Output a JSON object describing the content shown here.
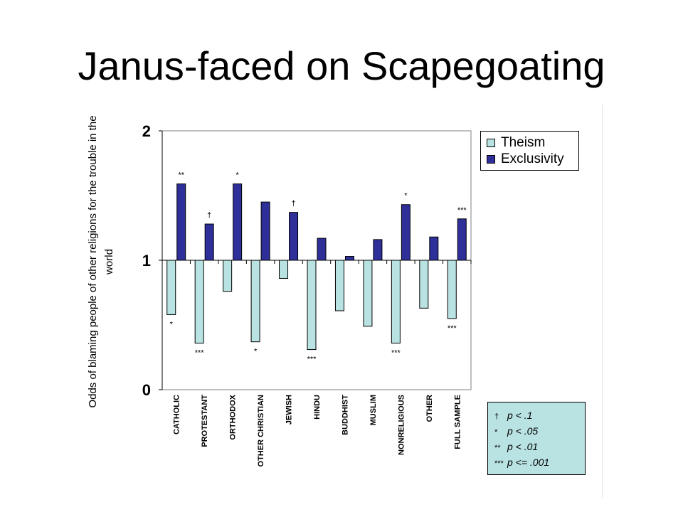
{
  "title": "Janus-faced on Scapegoating",
  "chart_data": {
    "type": "bar",
    "categories": [
      "CATHOLIC",
      "PROTESTANT",
      "ORTHODOX",
      "OTHER CHRISTIAN",
      "JEWISH",
      "HINDU",
      "BUDDHIST",
      "MUSLIM",
      "NONRELIGIOUS",
      "OTHER",
      "FULL SAMPLE"
    ],
    "series": [
      {
        "name": "Theism",
        "color": "#b9e2e2",
        "values": [
          0.58,
          0.36,
          0.76,
          0.37,
          0.86,
          0.31,
          0.61,
          0.49,
          0.36,
          0.63,
          0.55
        ],
        "significance": [
          "*",
          "***",
          "",
          "*",
          "",
          "***",
          "",
          "",
          "***",
          "",
          "***"
        ]
      },
      {
        "name": "Exclusivity",
        "color": "#2f2f9a",
        "values": [
          1.59,
          1.28,
          1.59,
          1.45,
          1.37,
          1.17,
          1.03,
          1.16,
          1.43,
          1.18,
          1.32
        ],
        "significance": [
          "**",
          "†",
          "*",
          "",
          "†",
          "",
          "",
          "",
          "*",
          "",
          "***"
        ]
      }
    ],
    "title": "",
    "xlabel": "",
    "ylabel": "Odds of blaming people of other religions for the trouble in the world",
    "ylim": [
      0,
      2
    ],
    "yticks": [
      "0",
      "1",
      "2"
    ],
    "baseline": 1,
    "grid": false,
    "legend": "top-right"
  },
  "significance_key": [
    {
      "symbol": "†",
      "text": "p < .1"
    },
    {
      "symbol": "*",
      "text": "p < .05"
    },
    {
      "symbol": "**",
      "text": "p < .01"
    },
    {
      "symbol": "***",
      "text": "p <= .001"
    }
  ]
}
